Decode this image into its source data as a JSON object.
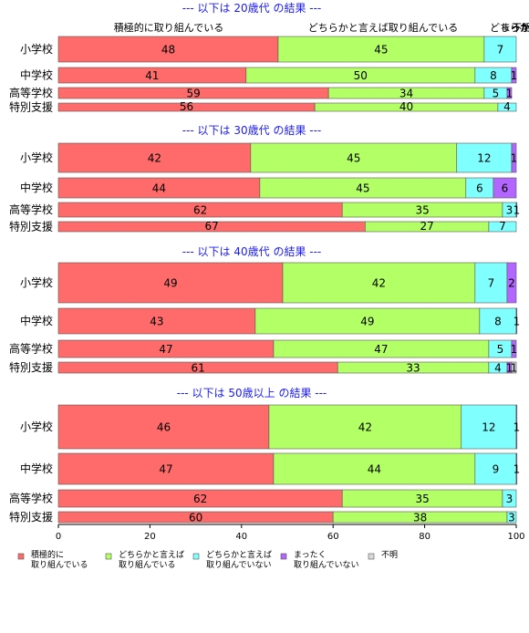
{
  "chart_data": {
    "type": "bar",
    "orientation": "horizontal",
    "stacked": true,
    "xlim": [
      0,
      100
    ],
    "x_ticks": [
      "0",
      "20",
      "40",
      "60",
      "80",
      "100"
    ],
    "top_category_labels": [
      "積極的に取り組んでいる",
      "どちらかと言えば取り組んでいる",
      "どちらかと言えば取り組んでいない",
      "まったく取り組んでいない",
      "不明"
    ],
    "legend_position": "bottom-left",
    "series": [
      {
        "name": "積極的に\n取り組んでいる",
        "color": "#ff6b6b"
      },
      {
        "name": "どちらかと言えば\n取り組んでいる",
        "color": "#b3ff66"
      },
      {
        "name": "どちらかと言えば\n取り組んでいない",
        "color": "#80ffff"
      },
      {
        "name": "まったく\n取り組んでいない",
        "color": "#b266ff"
      },
      {
        "name": "不明",
        "color": "#d9d9d9"
      }
    ],
    "groups": [
      {
        "title": "--- 以下は 20歳代 の結果 ---",
        "rows": [
          {
            "label": "小学校",
            "values": [
              48,
              45,
              7,
              0,
              0
            ]
          },
          {
            "label": "中学校",
            "values": [
              41,
              50,
              8,
              1,
              0
            ]
          },
          {
            "label": "高等学校",
            "values": [
              59,
              34,
              5,
              1,
              0
            ]
          },
          {
            "label": "特別支援",
            "values": [
              56,
              40,
              4,
              0,
              0
            ]
          }
        ]
      },
      {
        "title": "--- 以下は 30歳代 の結果 ---",
        "rows": [
          {
            "label": "小学校",
            "values": [
              42,
              45,
              12,
              1,
              0
            ]
          },
          {
            "label": "中学校",
            "values": [
              44,
              45,
              6,
              6,
              0
            ]
          },
          {
            "label": "高等学校",
            "values": [
              62,
              35,
              3,
              1,
              0
            ]
          },
          {
            "label": "特別支援",
            "values": [
              67,
              27,
              7,
              0,
              0
            ]
          }
        ]
      },
      {
        "title": "--- 以下は 40歳代 の結果 ---",
        "rows": [
          {
            "label": "小学校",
            "values": [
              49,
              42,
              7,
              2,
              0
            ]
          },
          {
            "label": "中学校",
            "values": [
              43,
              49,
              8,
              1,
              0
            ]
          },
          {
            "label": "高等学校",
            "values": [
              47,
              47,
              5,
              1,
              0
            ]
          },
          {
            "label": "特別支援",
            "values": [
              61,
              33,
              4,
              1,
              1
            ]
          }
        ]
      },
      {
        "title": "--- 以下は 50歳以上 の結果 ---",
        "rows": [
          {
            "label": "小学校",
            "values": [
              46,
              42,
              12,
              1,
              0
            ]
          },
          {
            "label": "中学校",
            "values": [
              47,
              44,
              9,
              1,
              0
            ]
          },
          {
            "label": "高等学校",
            "values": [
              62,
              35,
              3,
              0,
              0
            ]
          },
          {
            "label": "特別支援",
            "values": [
              60,
              38,
              3,
              0,
              0
            ]
          }
        ]
      }
    ]
  }
}
